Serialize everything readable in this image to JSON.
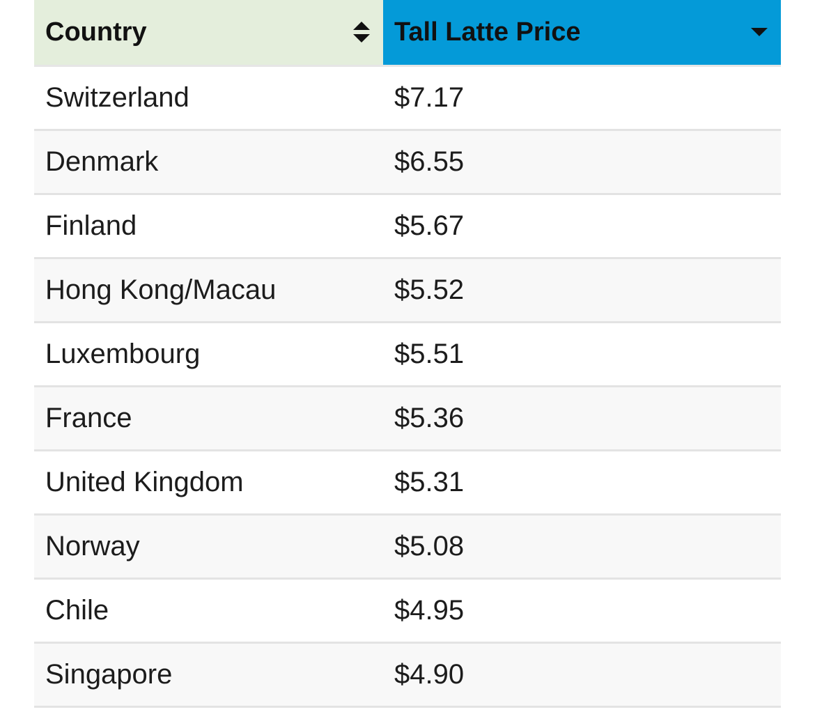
{
  "table": {
    "headers": {
      "country": "Country",
      "price": "Tall Latte Price"
    },
    "icons": {
      "country_sort": "sort-up-down-icon",
      "price_sort": "sort-down-icon"
    },
    "colors": {
      "country_header_bg": "#e4eedc",
      "price_header_bg": "#049ad8"
    },
    "rows": [
      {
        "country": "Switzerland",
        "price": "$7.17"
      },
      {
        "country": "Denmark",
        "price": "$6.55"
      },
      {
        "country": "Finland",
        "price": "$5.67"
      },
      {
        "country": "Hong Kong/Macau",
        "price": "$5.52"
      },
      {
        "country": "Luxembourg",
        "price": "$5.51"
      },
      {
        "country": "France",
        "price": "$5.36"
      },
      {
        "country": "United Kingdom",
        "price": "$5.31"
      },
      {
        "country": "Norway",
        "price": "$5.08"
      },
      {
        "country": "Chile",
        "price": "$4.95"
      },
      {
        "country": "Singapore",
        "price": "$4.90"
      }
    ]
  }
}
